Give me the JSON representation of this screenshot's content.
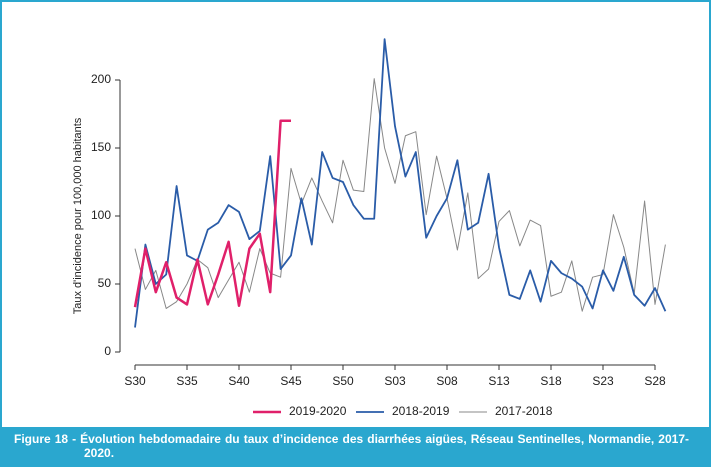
{
  "chart_data": {
    "type": "line",
    "ylabel": "Taux d'incidence pour 100,000 habitants",
    "categories": [
      "S30",
      null,
      null,
      null,
      null,
      "S35",
      null,
      null,
      null,
      null,
      "S40",
      null,
      null,
      null,
      null,
      "S45",
      null,
      null,
      null,
      null,
      "S50",
      null,
      null,
      null,
      null,
      "S03",
      null,
      null,
      null,
      null,
      "S08",
      null,
      null,
      null,
      null,
      "S13",
      null,
      null,
      null,
      null,
      "S18",
      null,
      null,
      null,
      null,
      "S23",
      null,
      null,
      null,
      null,
      "S28",
      null
    ],
    "series": [
      {
        "name": "2019-2020",
        "color": "#e0206a",
        "width": 2.5,
        "values": [
          33,
          76,
          44,
          66,
          40,
          35,
          68,
          35,
          57,
          81,
          34,
          76,
          87,
          44,
          170,
          170,
          null,
          null,
          null,
          null,
          null,
          null,
          null,
          null,
          null,
          null,
          null,
          null,
          null,
          null,
          null,
          null,
          null,
          null,
          null,
          null,
          null,
          null,
          null,
          null,
          null,
          null,
          null,
          null,
          null,
          null,
          null,
          null,
          null,
          null,
          null,
          null
        ]
      },
      {
        "name": "2018-2019",
        "color": "#2a5ca8",
        "width": 1.8,
        "values": [
          18,
          79,
          50,
          57,
          122,
          71,
          67,
          90,
          95,
          108,
          103,
          83,
          89,
          144,
          61,
          71,
          113,
          79,
          147,
          128,
          125,
          108,
          98,
          98,
          230,
          166,
          129,
          147,
          84,
          100,
          113,
          141,
          90,
          95,
          131,
          77,
          42,
          39,
          60,
          37,
          67,
          58,
          54,
          48,
          32,
          60,
          45,
          70,
          42,
          34,
          47,
          30
        ]
      },
      {
        "name": "2017-2018",
        "color": "#888888",
        "width": 1,
        "values": [
          76,
          46,
          60,
          32,
          37,
          50,
          68,
          62,
          40,
          53,
          66,
          44,
          76,
          58,
          55,
          135,
          109,
          128,
          111,
          95,
          141,
          119,
          118,
          201,
          150,
          124,
          159,
          162,
          101,
          144,
          113,
          75,
          117,
          54,
          61,
          96,
          104,
          78,
          97,
          93,
          41,
          44,
          67,
          30,
          55,
          57,
          101,
          77,
          43,
          111,
          35,
          79
        ]
      }
    ],
    "ylim": [
      0,
      200
    ],
    "yticks": [
      0,
      50,
      100,
      150,
      200
    ]
  },
  "caption": "Figure 18 - Évolution hebdomadaire du taux d’incidence des diarrhées aigües, Réseau Sentinelles, Normandie, 2017-2020."
}
